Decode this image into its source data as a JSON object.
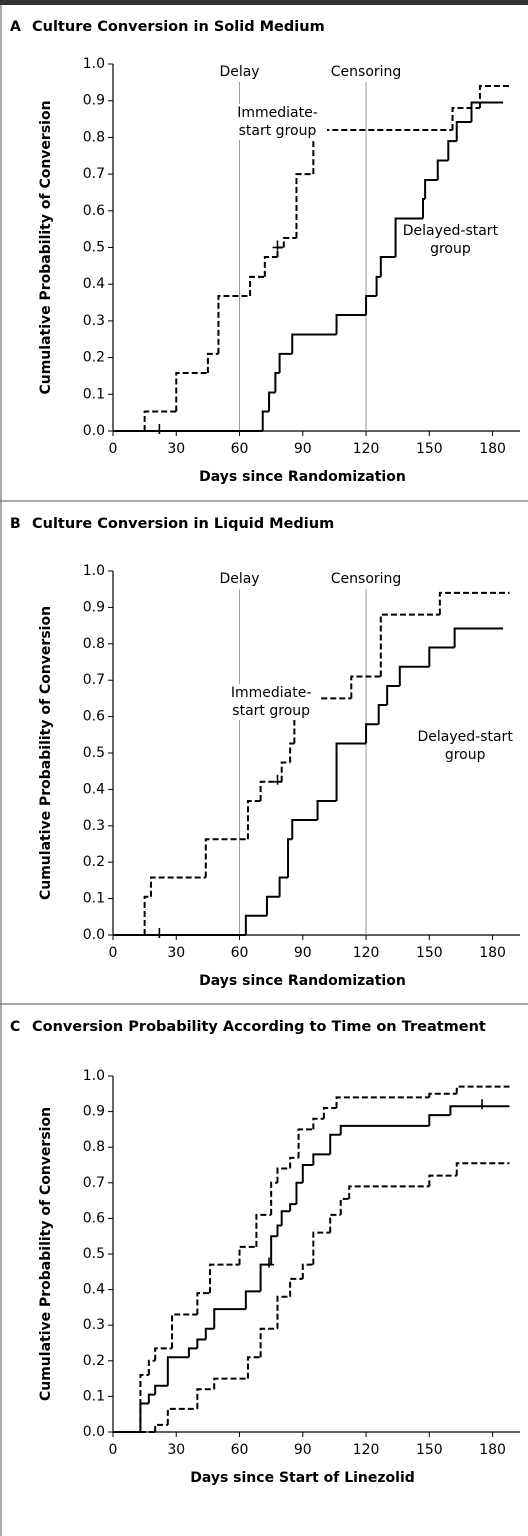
{
  "chart_data": [
    {
      "type": "line",
      "drawstyle": "steps-post",
      "panel": "A",
      "title": "Culture Conversion in Solid Medium",
      "x_label": "Days since Randomization",
      "y_label": "Cumulative Probability of Conversion",
      "xlim": [
        0,
        193
      ],
      "ylim": [
        0,
        1
      ],
      "xticks": [
        0,
        30,
        60,
        90,
        120,
        150,
        180
      ],
      "yticks": [
        {
          "value": 0,
          "label": "0.0"
        },
        0.1,
        0.2,
        0.3,
        0.4,
        0.5,
        0.6,
        0.7,
        0.8,
        0.9,
        {
          "value": 1,
          "label": "1.0"
        }
      ],
      "vlines": [
        {
          "x": 60,
          "label": "Delay"
        },
        {
          "x": 120,
          "label": "Censoring"
        }
      ],
      "series": [
        {
          "name": "Immediate-start group",
          "color": "#000000",
          "dash": true,
          "x": [
            0,
            15,
            30,
            45,
            50,
            65,
            72,
            78,
            81,
            87,
            95,
            161,
            174,
            188
          ],
          "values": [
            0,
            0.053,
            0.158,
            0.21,
            0.368,
            0.42,
            0.474,
            0.5,
            0.526,
            0.7,
            0.82,
            0.88,
            0.94,
            0.94
          ],
          "censored": [
            {
              "x": 22,
              "y": 0
            },
            {
              "x": 78,
              "y": 0.5
            }
          ]
        },
        {
          "name": "Delayed-start group",
          "color": "#000000",
          "dash": false,
          "x": [
            0,
            71,
            74,
            77,
            79,
            85,
            106,
            120,
            125,
            127,
            134,
            147,
            148,
            154,
            159,
            163,
            170,
            185
          ],
          "values": [
            0,
            0.053,
            0.105,
            0.158,
            0.21,
            0.263,
            0.316,
            0.368,
            0.42,
            0.474,
            0.579,
            0.632,
            0.684,
            0.737,
            0.79,
            0.842,
            0.895,
            0.895
          ],
          "censored": []
        }
      ]
    },
    {
      "type": "line",
      "drawstyle": "steps-post",
      "panel": "B",
      "title": "Culture Conversion in Liquid Medium",
      "x_label": "Days since Randomization",
      "y_label": "Cumulative Probability of Conversion",
      "xlim": [
        0,
        193
      ],
      "ylim": [
        0,
        1
      ],
      "xticks": [
        0,
        30,
        60,
        90,
        120,
        150,
        180
      ],
      "yticks": [
        {
          "value": 0,
          "label": "0.0"
        },
        0.1,
        0.2,
        0.3,
        0.4,
        0.5,
        0.6,
        0.7,
        0.8,
        0.9,
        {
          "value": 1,
          "label": "1.0"
        }
      ],
      "vlines": [
        {
          "x": 60,
          "label": "Delay"
        },
        {
          "x": 120,
          "label": "Censoring"
        }
      ],
      "series": [
        {
          "name": "Immediate-start group",
          "color": "#000000",
          "dash": true,
          "x": [
            0,
            15,
            18,
            44,
            64,
            70,
            80,
            84,
            86,
            91,
            113,
            127,
            155,
            188
          ],
          "values": [
            0,
            0.105,
            0.158,
            0.263,
            0.368,
            0.421,
            0.474,
            0.526,
            0.596,
            0.65,
            0.71,
            0.88,
            0.94,
            0.94
          ],
          "censored": [
            {
              "x": 22,
              "y": 0
            },
            {
              "x": 78,
              "y": 0.421
            }
          ]
        },
        {
          "name": "Delayed-start group",
          "color": "#000000",
          "dash": false,
          "x": [
            0,
            63,
            73,
            79,
            83,
            85,
            97,
            106,
            120,
            126,
            130,
            136,
            150,
            162,
            185
          ],
          "values": [
            0,
            0.053,
            0.105,
            0.158,
            0.263,
            0.316,
            0.368,
            0.526,
            0.579,
            0.632,
            0.684,
            0.737,
            0.79,
            0.842,
            0.842
          ],
          "censored": []
        }
      ]
    },
    {
      "type": "line",
      "drawstyle": "steps-post",
      "panel": "C",
      "title": "Conversion Probability According to Time on Treatment",
      "x_label": "Days since Start of Linezolid",
      "y_label": "Cumulative Probability of Conversion",
      "xlim": [
        0,
        193
      ],
      "ylim": [
        0,
        1
      ],
      "xticks": [
        0,
        30,
        60,
        90,
        120,
        150,
        180
      ],
      "yticks": [
        {
          "value": 0,
          "label": "0.0"
        },
        0.1,
        0.2,
        0.3,
        0.4,
        0.5,
        0.6,
        0.7,
        0.8,
        0.9,
        {
          "value": 1,
          "label": "1.0"
        }
      ],
      "vlines": [],
      "series": [
        {
          "color": "#000000",
          "dash": false,
          "x": [
            0,
            13,
            17,
            20,
            26,
            36,
            40,
            44,
            48,
            63,
            70,
            75,
            78,
            80,
            84,
            87,
            90,
            95,
            103,
            108,
            150,
            160,
            188
          ],
          "values": [
            0,
            0.08,
            0.105,
            0.13,
            0.21,
            0.235,
            0.26,
            0.29,
            0.345,
            0.395,
            0.47,
            0.55,
            0.58,
            0.62,
            0.64,
            0.7,
            0.75,
            0.78,
            0.835,
            0.86,
            0.89,
            0.915,
            0.915
          ],
          "censored": [
            {
              "x": 74,
              "y": 0.47
            },
            {
              "x": 175,
              "y": 0.915
            }
          ]
        },
        {
          "color": "#000000",
          "dash": true,
          "x": [
            0,
            13,
            17,
            20,
            28,
            40,
            46,
            60,
            68,
            75,
            78,
            84,
            88,
            95,
            100,
            106,
            150,
            163,
            188
          ],
          "values": [
            0,
            0.16,
            0.2,
            0.235,
            0.33,
            0.39,
            0.47,
            0.52,
            0.61,
            0.7,
            0.74,
            0.77,
            0.85,
            0.88,
            0.91,
            0.94,
            0.95,
            0.97,
            0.97
          ],
          "censored": []
        },
        {
          "color": "#000000",
          "dash": true,
          "x": [
            0,
            20,
            26,
            40,
            48,
            64,
            70,
            78,
            84,
            90,
            95,
            103,
            108,
            112,
            150,
            163,
            188
          ],
          "values": [
            0,
            0.02,
            0.065,
            0.12,
            0.15,
            0.21,
            0.29,
            0.38,
            0.43,
            0.47,
            0.56,
            0.61,
            0.655,
            0.69,
            0.72,
            0.755,
            0.755
          ],
          "censored": []
        }
      ]
    }
  ]
}
